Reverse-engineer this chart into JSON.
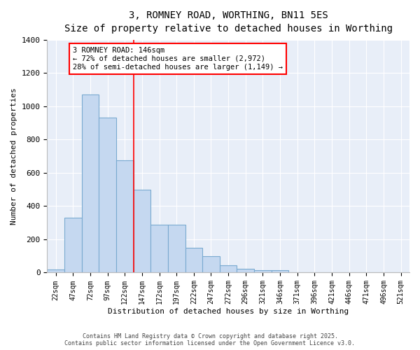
{
  "title": "3, ROMNEY ROAD, WORTHING, BN11 5ES",
  "subtitle": "Size of property relative to detached houses in Worthing",
  "xlabel": "Distribution of detached houses by size in Worthing",
  "ylabel": "Number of detached properties",
  "background_color": "#ffffff",
  "plot_bg_color": "#e8eef8",
  "bar_color": "#c5d8f0",
  "bar_edge_color": "#7aaad0",
  "categories": [
    "22sqm",
    "47sqm",
    "72sqm",
    "97sqm",
    "122sqm",
    "147sqm",
    "172sqm",
    "197sqm",
    "222sqm",
    "247sqm",
    "272sqm",
    "296sqm",
    "321sqm",
    "346sqm",
    "371sqm",
    "396sqm",
    "421sqm",
    "446sqm",
    "471sqm",
    "496sqm",
    "521sqm"
  ],
  "values": [
    20,
    330,
    1070,
    930,
    675,
    500,
    290,
    290,
    150,
    100,
    45,
    25,
    15,
    15,
    0,
    0,
    0,
    0,
    0,
    0,
    0
  ],
  "ylim": [
    0,
    1400
  ],
  "yticks": [
    0,
    200,
    400,
    600,
    800,
    1000,
    1200,
    1400
  ],
  "annotation_text": "3 ROMNEY ROAD: 146sqm\n← 72% of detached houses are smaller (2,972)\n28% of semi-detached houses are larger (1,149) →",
  "vline_x": 4.5,
  "footer_line1": "Contains HM Land Registry data © Crown copyright and database right 2025.",
  "footer_line2": "Contains public sector information licensed under the Open Government Licence v3.0."
}
